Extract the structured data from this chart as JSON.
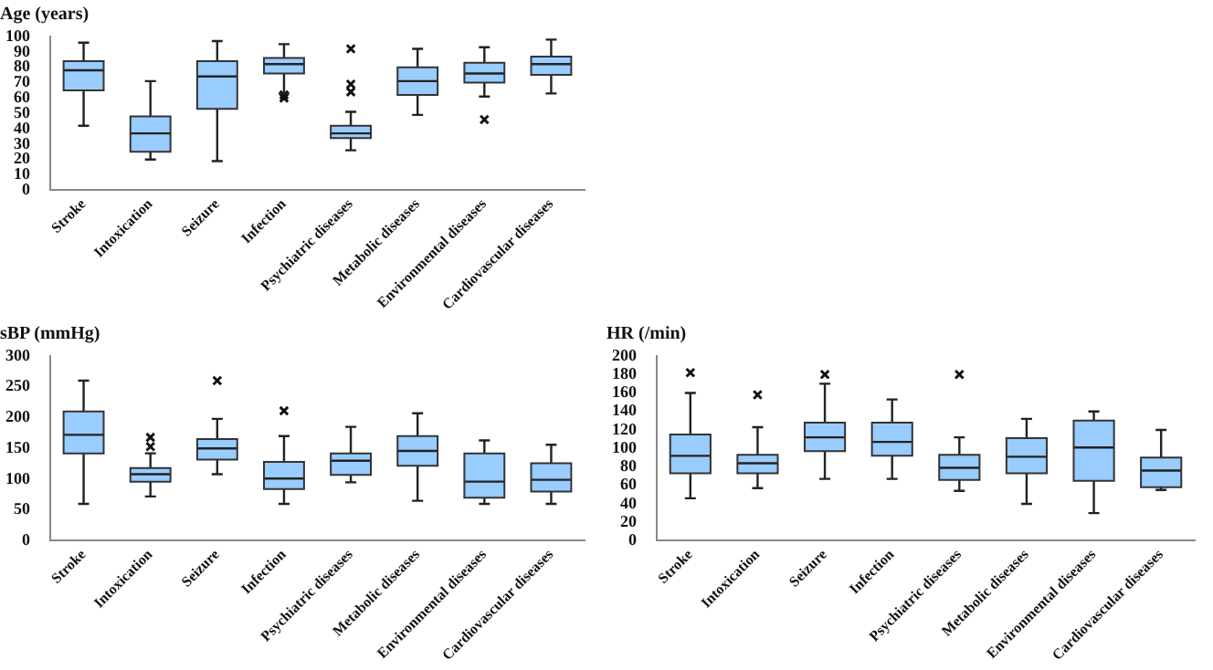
{
  "chart_data": [
    {
      "type": "box",
      "ylabel": "Age (years)",
      "color": "#99ccff",
      "ylim": [
        0,
        100
      ],
      "yticks": [
        0,
        10,
        20,
        30,
        40,
        50,
        60,
        70,
        80,
        90,
        100
      ],
      "categories": [
        "Stroke",
        "Intoxication",
        "Seizure",
        "Infection",
        "Psychiatric diseases",
        "Metabolic diseases",
        "Environmental diseases",
        "Cardiovascular diseases"
      ],
      "boxes": [
        {
          "low": 42,
          "q1": 65,
          "median": 78,
          "q3": 84,
          "high": 96
        },
        {
          "low": 20,
          "q1": 25,
          "median": 37,
          "q3": 48,
          "high": 71
        },
        {
          "low": 19,
          "q1": 53,
          "median": 74,
          "q3": 84,
          "high": 97
        },
        {
          "low": 63,
          "q1": 76,
          "median": 82,
          "q3": 86,
          "high": 95,
          "outliers": [
            60,
            62
          ]
        },
        {
          "low": 26,
          "q1": 34,
          "median": 37,
          "q3": 42,
          "high": 51,
          "outliers": [
            64,
            69,
            92
          ]
        },
        {
          "low": 49,
          "q1": 62,
          "median": 71,
          "q3": 80,
          "high": 92
        },
        {
          "low": 61,
          "q1": 70,
          "median": 76,
          "q3": 83,
          "high": 93,
          "outliers": [
            46
          ]
        },
        {
          "low": 63,
          "q1": 75,
          "median": 82,
          "q3": 87,
          "high": 98
        }
      ]
    },
    {
      "type": "box",
      "ylabel": "sBP (mmHg)",
      "color": "#99ccff",
      "ylim": [
        0,
        300
      ],
      "yticks": [
        0,
        50,
        100,
        150,
        200,
        250,
        300
      ],
      "categories": [
        "Stroke",
        "Intoxication",
        "Seizure",
        "Infection",
        "Psychiatric diseases",
        "Metabolic diseases",
        "Environmental diseases",
        "Cardiovascular diseases"
      ],
      "boxes": [
        {
          "low": 60,
          "q1": 142,
          "median": 172,
          "q3": 210,
          "high": 260
        },
        {
          "low": 72,
          "q1": 96,
          "median": 108,
          "q3": 118,
          "high": 142,
          "outliers": [
            153,
            168
          ]
        },
        {
          "low": 108,
          "q1": 132,
          "median": 150,
          "q3": 165,
          "high": 198,
          "outliers": [
            260
          ]
        },
        {
          "low": 60,
          "q1": 84,
          "median": 101,
          "q3": 128,
          "high": 170,
          "outliers": [
            211
          ]
        },
        {
          "low": 95,
          "q1": 107,
          "median": 130,
          "q3": 142,
          "high": 185
        },
        {
          "low": 65,
          "q1": 122,
          "median": 146,
          "q3": 170,
          "high": 207
        },
        {
          "low": 60,
          "q1": 70,
          "median": 96,
          "q3": 142,
          "high": 163
        },
        {
          "low": 60,
          "q1": 80,
          "median": 99,
          "q3": 126,
          "high": 156
        }
      ]
    },
    {
      "type": "box",
      "ylabel": "HR (/min)",
      "color": "#99ccff",
      "ylim": [
        0,
        200
      ],
      "yticks": [
        0,
        20,
        40,
        60,
        80,
        100,
        120,
        140,
        160,
        180,
        200
      ],
      "categories": [
        "Stroke",
        "Intoxication",
        "Seizure",
        "Infection",
        "Psychiatric diseases",
        "Metabolic diseases",
        "Environmental diseases",
        "Cardiovascular diseases"
      ],
      "boxes": [
        {
          "low": 46,
          "q1": 73,
          "median": 92,
          "q3": 115,
          "high": 160,
          "outliers": [
            182
          ]
        },
        {
          "low": 57,
          "q1": 73,
          "median": 84,
          "q3": 93,
          "high": 123,
          "outliers": [
            158
          ]
        },
        {
          "low": 67,
          "q1": 97,
          "median": 112,
          "q3": 128,
          "high": 170,
          "outliers": [
            180
          ]
        },
        {
          "low": 67,
          "q1": 92,
          "median": 107,
          "q3": 128,
          "high": 153
        },
        {
          "low": 54,
          "q1": 66,
          "median": 79,
          "q3": 93,
          "high": 112,
          "outliers": [
            180
          ]
        },
        {
          "low": 40,
          "q1": 73,
          "median": 91,
          "q3": 111,
          "high": 132
        },
        {
          "low": 30,
          "q1": 65,
          "median": 101,
          "q3": 130,
          "high": 140
        },
        {
          "low": 55,
          "q1": 58,
          "median": 76,
          "q3": 90,
          "high": 120
        }
      ]
    }
  ]
}
